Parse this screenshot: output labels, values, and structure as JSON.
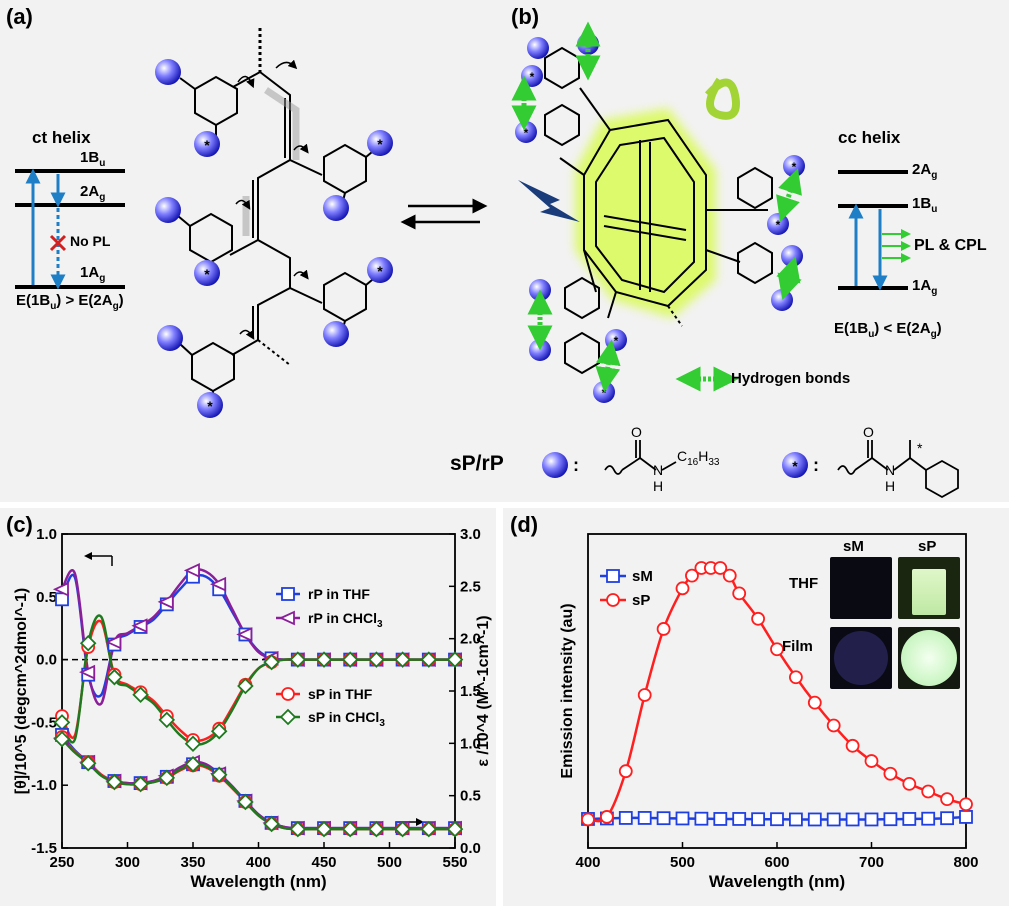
{
  "panel_labels": {
    "a": "(a)",
    "b": "(b)",
    "c": "(c)",
    "d": "(d)"
  },
  "panel_a": {
    "helix_label": "ct helix",
    "levels": [
      "1B",
      "2A",
      "1A"
    ],
    "level_subs": [
      "u",
      "g",
      "g"
    ],
    "no_pl": "No PL",
    "energy_relation": "E(1B",
    "energy_mid": ") > E(2A",
    "energy_end": ")",
    "energy_sub1": "u",
    "energy_sub2": "g"
  },
  "panel_b": {
    "helix_label": "cc helix",
    "levels": [
      "2A",
      "1B",
      "1A"
    ],
    "level_subs": [
      "g",
      "u",
      "g"
    ],
    "pl_cpl": "PL & CPL",
    "energy_relation": "E(1B",
    "energy_mid": ") < E(2A",
    "energy_end": ")",
    "energy_sub1": "u",
    "energy_sub2": "g",
    "hbond_label": "Hydrogen bonds"
  },
  "legend_structures": {
    "polymer_label": "sP/rP",
    "colon": ":",
    "amide_chain": "C",
    "amide_sub": "16",
    "amide_tail": "H",
    "amide_sub2": "33",
    "o_label": "O",
    "nh_label": "N",
    "h_label": "H",
    "star": "*"
  },
  "chart_data": [
    {
      "type": "line",
      "id": "c",
      "xlabel": "Wavelength (nm)",
      "ylabel_left": "[θ]/10^5 (degcm^2dmol^-1)",
      "ylabel_right": "ε /10^4 (M^-1cm^-1)",
      "xlim": [
        250,
        550
      ],
      "ylim_left": [
        -1.5,
        1.0
      ],
      "ylim_right": [
        0.0,
        3.0
      ],
      "x_ticks": [
        250,
        300,
        350,
        400,
        450,
        500,
        550
      ],
      "y_ticks_left": [
        "-1.5",
        "-1.0",
        "-0.5",
        "0.0",
        "0.5",
        "1.0"
      ],
      "y_ticks_right": [
        "0.0",
        "0.5",
        "1.0",
        "1.5",
        "2.0",
        "2.5",
        "3.0"
      ],
      "legend": [
        {
          "name": "rP in THF",
          "color": "#1f3fe0",
          "marker": "square"
        },
        {
          "name": "rP in CHCl",
          "sub": "3",
          "color": "#8b1f9a",
          "marker": "triangle-left"
        },
        {
          "name": "sP in THF",
          "color": "#ff1f1f",
          "marker": "circle"
        },
        {
          "name": "sP in CHCl",
          "sub": "3",
          "color": "#1f7a1f",
          "marker": "diamond"
        }
      ],
      "cd_series": [
        {
          "name": "rP in THF",
          "color": "#1f3fe0",
          "marker": "square",
          "x": [
            250,
            260,
            270,
            280,
            290,
            300,
            310,
            320,
            330,
            340,
            350,
            360,
            370,
            380,
            390,
            400,
            410,
            420,
            430,
            440,
            450,
            460,
            470,
            480,
            490,
            500,
            510,
            520,
            530,
            540,
            550
          ],
          "y": [
            0.48,
            0.65,
            -0.12,
            -0.28,
            0.12,
            0.2,
            0.26,
            0.32,
            0.44,
            0.56,
            0.66,
            0.66,
            0.56,
            0.38,
            0.2,
            0.07,
            0.01,
            0.0,
            0.0,
            0.0,
            0.0,
            0.0,
            0.0,
            0.0,
            0.0,
            0.0,
            0.0,
            0.0,
            0.0,
            0.0,
            0.0
          ]
        },
        {
          "name": "rP in CHCl3",
          "color": "#8b1f9a",
          "marker": "triangle-left",
          "x": [
            250,
            260,
            270,
            280,
            290,
            300,
            310,
            320,
            330,
            340,
            350,
            360,
            370,
            380,
            390,
            400,
            410,
            420,
            430,
            440,
            450,
            460,
            470,
            480,
            490,
            500,
            510,
            520,
            530,
            540,
            550
          ],
          "y": [
            0.56,
            0.68,
            -0.1,
            -0.35,
            0.14,
            0.21,
            0.27,
            0.34,
            0.46,
            0.6,
            0.71,
            0.7,
            0.6,
            0.4,
            0.2,
            0.06,
            0.01,
            0.0,
            0.0,
            0.0,
            0.0,
            0.0,
            0.0,
            0.0,
            0.0,
            0.0,
            0.0,
            0.0,
            0.0,
            0.0,
            0.0
          ]
        },
        {
          "name": "sP in THF",
          "color": "#ff1f1f",
          "marker": "circle",
          "x": [
            250,
            260,
            270,
            280,
            290,
            300,
            310,
            320,
            330,
            340,
            350,
            360,
            370,
            380,
            390,
            400,
            410,
            420,
            430,
            440,
            450,
            460,
            470,
            480,
            490,
            500,
            510,
            520,
            530,
            540,
            550
          ],
          "y": [
            -0.45,
            -0.6,
            0.1,
            0.3,
            -0.12,
            -0.2,
            -0.26,
            -0.33,
            -0.45,
            -0.56,
            -0.64,
            -0.63,
            -0.55,
            -0.38,
            -0.2,
            -0.07,
            -0.02,
            0.0,
            0.0,
            0.0,
            0.0,
            0.0,
            0.0,
            0.0,
            0.0,
            0.0,
            0.0,
            0.0,
            0.0,
            0.0,
            0.0
          ]
        },
        {
          "name": "sP in CHCl3",
          "color": "#1f7a1f",
          "marker": "diamond",
          "x": [
            250,
            260,
            270,
            280,
            290,
            300,
            310,
            320,
            330,
            340,
            350,
            360,
            370,
            380,
            390,
            400,
            410,
            420,
            430,
            440,
            450,
            460,
            470,
            480,
            490,
            500,
            510,
            520,
            530,
            540,
            550
          ],
          "y": [
            -0.5,
            -0.63,
            0.13,
            0.34,
            -0.14,
            -0.21,
            -0.28,
            -0.35,
            -0.48,
            -0.6,
            -0.67,
            -0.66,
            -0.57,
            -0.4,
            -0.21,
            -0.07,
            -0.02,
            0.0,
            0.0,
            0.0,
            0.0,
            0.0,
            0.0,
            0.0,
            0.0,
            0.0,
            0.0,
            0.0,
            0.0,
            0.0,
            0.0
          ]
        }
      ],
      "abs_series_note": "absorption (right axis)",
      "abs_series": [
        {
          "name": "rP in THF",
          "color": "#1f3fe0",
          "x": [
            250,
            260,
            270,
            280,
            290,
            300,
            310,
            320,
            330,
            340,
            350,
            360,
            370,
            380,
            390,
            400,
            410,
            420,
            430,
            440,
            450,
            460,
            470,
            480,
            490,
            500,
            510,
            520,
            530,
            540,
            550
          ],
          "y": [
            1.08,
            0.93,
            0.82,
            0.7,
            0.64,
            0.62,
            0.62,
            0.64,
            0.68,
            0.75,
            0.8,
            0.78,
            0.7,
            0.58,
            0.45,
            0.32,
            0.24,
            0.2,
            0.19,
            0.19,
            0.19,
            0.19,
            0.19,
            0.19,
            0.19,
            0.19,
            0.19,
            0.19,
            0.19,
            0.19,
            0.19
          ]
        },
        {
          "name": "rP in CHCl3",
          "color": "#8b1f9a",
          "x": [
            250,
            260,
            270,
            280,
            290,
            300,
            310,
            320,
            330,
            340,
            350,
            360,
            370,
            380,
            390,
            400,
            410,
            420,
            430,
            440,
            450,
            460,
            470,
            480,
            490,
            500,
            510,
            520,
            530,
            540,
            550
          ],
          "y": [
            1.05,
            0.92,
            0.82,
            0.7,
            0.64,
            0.62,
            0.62,
            0.64,
            0.69,
            0.77,
            0.82,
            0.8,
            0.71,
            0.59,
            0.45,
            0.32,
            0.24,
            0.2,
            0.19,
            0.19,
            0.19,
            0.19,
            0.19,
            0.19,
            0.19,
            0.19,
            0.19,
            0.19,
            0.19,
            0.19,
            0.19
          ]
        },
        {
          "name": "sP in THF",
          "color": "#ff1f1f",
          "marker": "circle",
          "x": [
            250,
            260,
            270,
            280,
            290,
            300,
            310,
            320,
            330,
            340,
            350,
            360,
            370,
            380,
            390,
            400,
            410,
            420,
            430,
            440,
            450,
            460,
            470,
            480,
            490,
            500,
            510,
            520,
            530,
            540,
            550
          ],
          "y": [
            1.06,
            0.92,
            0.82,
            0.7,
            0.63,
            0.61,
            0.61,
            0.63,
            0.67,
            0.74,
            0.79,
            0.77,
            0.69,
            0.57,
            0.44,
            0.31,
            0.23,
            0.19,
            0.18,
            0.18,
            0.18,
            0.18,
            0.18,
            0.18,
            0.18,
            0.18,
            0.18,
            0.18,
            0.18,
            0.18,
            0.18
          ]
        },
        {
          "name": "sP in CHCl3",
          "color": "#1f7a1f",
          "x": [
            250,
            260,
            270,
            280,
            290,
            300,
            310,
            320,
            330,
            340,
            350,
            360,
            370,
            380,
            390,
            400,
            410,
            420,
            430,
            440,
            450,
            460,
            470,
            480,
            490,
            500,
            510,
            520,
            530,
            540,
            550
          ],
          "y": [
            1.04,
            0.91,
            0.81,
            0.69,
            0.63,
            0.61,
            0.61,
            0.63,
            0.67,
            0.75,
            0.8,
            0.78,
            0.7,
            0.58,
            0.44,
            0.31,
            0.23,
            0.19,
            0.18,
            0.18,
            0.18,
            0.18,
            0.18,
            0.18,
            0.18,
            0.18,
            0.18,
            0.18,
            0.18,
            0.18,
            0.18
          ]
        }
      ]
    },
    {
      "type": "line",
      "id": "d",
      "xlabel": "Wavelength (nm)",
      "ylabel": "Emission intensity (au)",
      "xlim": [
        400,
        800
      ],
      "x_ticks": [
        400,
        500,
        600,
        700,
        800
      ],
      "legend": [
        {
          "name": "sM",
          "color": "#1f3fe0",
          "marker": "square"
        },
        {
          "name": "sP",
          "color": "#ff1f1f",
          "marker": "circle"
        }
      ],
      "series": [
        {
          "name": "sM",
          "color": "#1f3fe0",
          "marker": "square",
          "x": [
            400,
            420,
            440,
            460,
            480,
            500,
            520,
            540,
            560,
            580,
            600,
            620,
            640,
            660,
            680,
            700,
            720,
            740,
            760,
            780,
            800
          ],
          "y": [
            0.012,
            0.014,
            0.016,
            0.016,
            0.015,
            0.014,
            0.013,
            0.012,
            0.012,
            0.011,
            0.011,
            0.01,
            0.01,
            0.01,
            0.01,
            0.01,
            0.011,
            0.012,
            0.013,
            0.015,
            0.02
          ]
        },
        {
          "name": "sP",
          "color": "#ff1f1f",
          "marker": "circle",
          "x": [
            400,
            420,
            440,
            460,
            480,
            500,
            510,
            520,
            530,
            540,
            550,
            560,
            580,
            600,
            620,
            640,
            660,
            680,
            700,
            720,
            740,
            760,
            780,
            800
          ],
          "y": [
            0.01,
            0.02,
            0.2,
            0.5,
            0.76,
            0.92,
            0.97,
            1.0,
            1.0,
            1.0,
            0.97,
            0.9,
            0.8,
            0.68,
            0.57,
            0.47,
            0.38,
            0.3,
            0.24,
            0.19,
            0.15,
            0.12,
            0.09,
            0.07
          ]
        }
      ],
      "insets": {
        "col_labels": [
          "sM",
          "sP"
        ],
        "row_labels": [
          "THF",
          "Film"
        ]
      }
    }
  ],
  "colors": {
    "panel_bg": "#f2f2f2",
    "bead": "#3d3dd6",
    "green": "#33cc33",
    "glow": "#ccff00",
    "arrow_blue": "#1f7fc6"
  }
}
